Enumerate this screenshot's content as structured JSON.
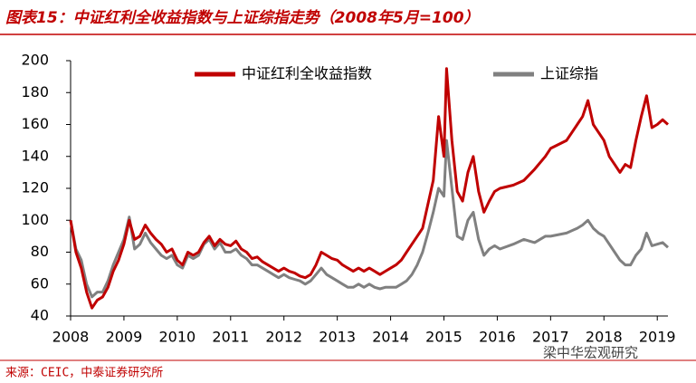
{
  "title": "图表15：中证红利全收益指数与上证综指走势（2008年5月=100）",
  "source": "来源：CEIC，中泰证券研究所",
  "watermark": "梁中华宏观研究",
  "chart_data": {
    "type": "line",
    "x": [
      2008.0,
      2008.1,
      2008.2,
      2008.3,
      2008.4,
      2008.5,
      2008.6,
      2008.7,
      2008.8,
      2008.9,
      2009.0,
      2009.1,
      2009.2,
      2009.3,
      2009.4,
      2009.5,
      2009.6,
      2009.7,
      2009.8,
      2009.9,
      2010.0,
      2010.1,
      2010.2,
      2010.3,
      2010.4,
      2010.5,
      2010.6,
      2010.7,
      2010.8,
      2010.9,
      2011.0,
      2011.1,
      2011.2,
      2011.3,
      2011.4,
      2011.5,
      2011.6,
      2011.7,
      2011.8,
      2011.9,
      2012.0,
      2012.1,
      2012.2,
      2012.3,
      2012.4,
      2012.5,
      2012.6,
      2012.7,
      2012.8,
      2012.9,
      2013.0,
      2013.1,
      2013.2,
      2013.3,
      2013.4,
      2013.5,
      2013.6,
      2013.7,
      2013.8,
      2013.9,
      2014.0,
      2014.1,
      2014.2,
      2014.3,
      2014.4,
      2014.5,
      2014.6,
      2014.7,
      2014.8,
      2014.9,
      2015.0,
      2015.05,
      2015.15,
      2015.25,
      2015.35,
      2015.45,
      2015.55,
      2015.65,
      2015.75,
      2015.85,
      2015.95,
      2016.05,
      2016.3,
      2016.5,
      2016.7,
      2016.9,
      2017.0,
      2017.3,
      2017.5,
      2017.6,
      2017.7,
      2017.8,
      2017.9,
      2018.0,
      2018.1,
      2018.2,
      2018.3,
      2018.4,
      2018.5,
      2018.6,
      2018.7,
      2018.8,
      2018.9,
      2019.0,
      2019.1,
      2019.2
    ],
    "series": [
      {
        "name": "中证红利全收益指数",
        "color": "#c00000",
        "values": [
          100,
          80,
          70,
          55,
          45,
          50,
          52,
          58,
          68,
          75,
          85,
          100,
          88,
          90,
          97,
          92,
          88,
          85,
          80,
          82,
          75,
          72,
          80,
          78,
          80,
          86,
          90,
          84,
          88,
          85,
          84,
          87,
          82,
          80,
          76,
          77,
          74,
          72,
          70,
          68,
          70,
          68,
          67,
          65,
          64,
          66,
          72,
          80,
          78,
          76,
          75,
          72,
          70,
          68,
          70,
          68,
          70,
          68,
          66,
          68,
          70,
          72,
          75,
          80,
          85,
          90,
          95,
          110,
          125,
          165,
          140,
          195,
          150,
          118,
          112,
          130,
          140,
          118,
          105,
          112,
          118,
          120,
          122,
          125,
          132,
          140,
          145,
          150,
          160,
          165,
          175,
          160,
          155,
          150,
          140,
          135,
          130,
          135,
          133,
          150,
          165,
          178,
          158,
          160,
          163,
          160
        ]
      },
      {
        "name": "上证综指",
        "color": "#808080",
        "values": [
          100,
          82,
          75,
          60,
          52,
          55,
          55,
          62,
          72,
          80,
          88,
          102,
          82,
          85,
          92,
          86,
          82,
          78,
          76,
          78,
          72,
          70,
          78,
          76,
          78,
          85,
          88,
          82,
          86,
          80,
          80,
          82,
          78,
          76,
          72,
          72,
          70,
          68,
          66,
          64,
          66,
          64,
          63,
          62,
          60,
          62,
          66,
          70,
          66,
          64,
          62,
          60,
          58,
          58,
          60,
          58,
          60,
          58,
          57,
          58,
          58,
          58,
          60,
          62,
          66,
          72,
          80,
          92,
          105,
          120,
          115,
          150,
          120,
          90,
          88,
          100,
          105,
          88,
          78,
          82,
          84,
          82,
          85,
          88,
          86,
          90,
          90,
          92,
          95,
          97,
          100,
          95,
          92,
          90,
          85,
          80,
          75,
          72,
          72,
          78,
          82,
          92,
          84,
          85,
          86,
          83
        ]
      }
    ],
    "xlim": [
      2008,
      2019.2
    ],
    "xticks": [
      2008,
      2009,
      2010,
      2011,
      2012,
      2013,
      2014,
      2015,
      2016,
      2017,
      2018,
      2019
    ],
    "ylim": [
      40,
      200
    ],
    "yticks": [
      40,
      60,
      80,
      100,
      120,
      140,
      160,
      180,
      200
    ],
    "grid": false,
    "legend": "top"
  }
}
